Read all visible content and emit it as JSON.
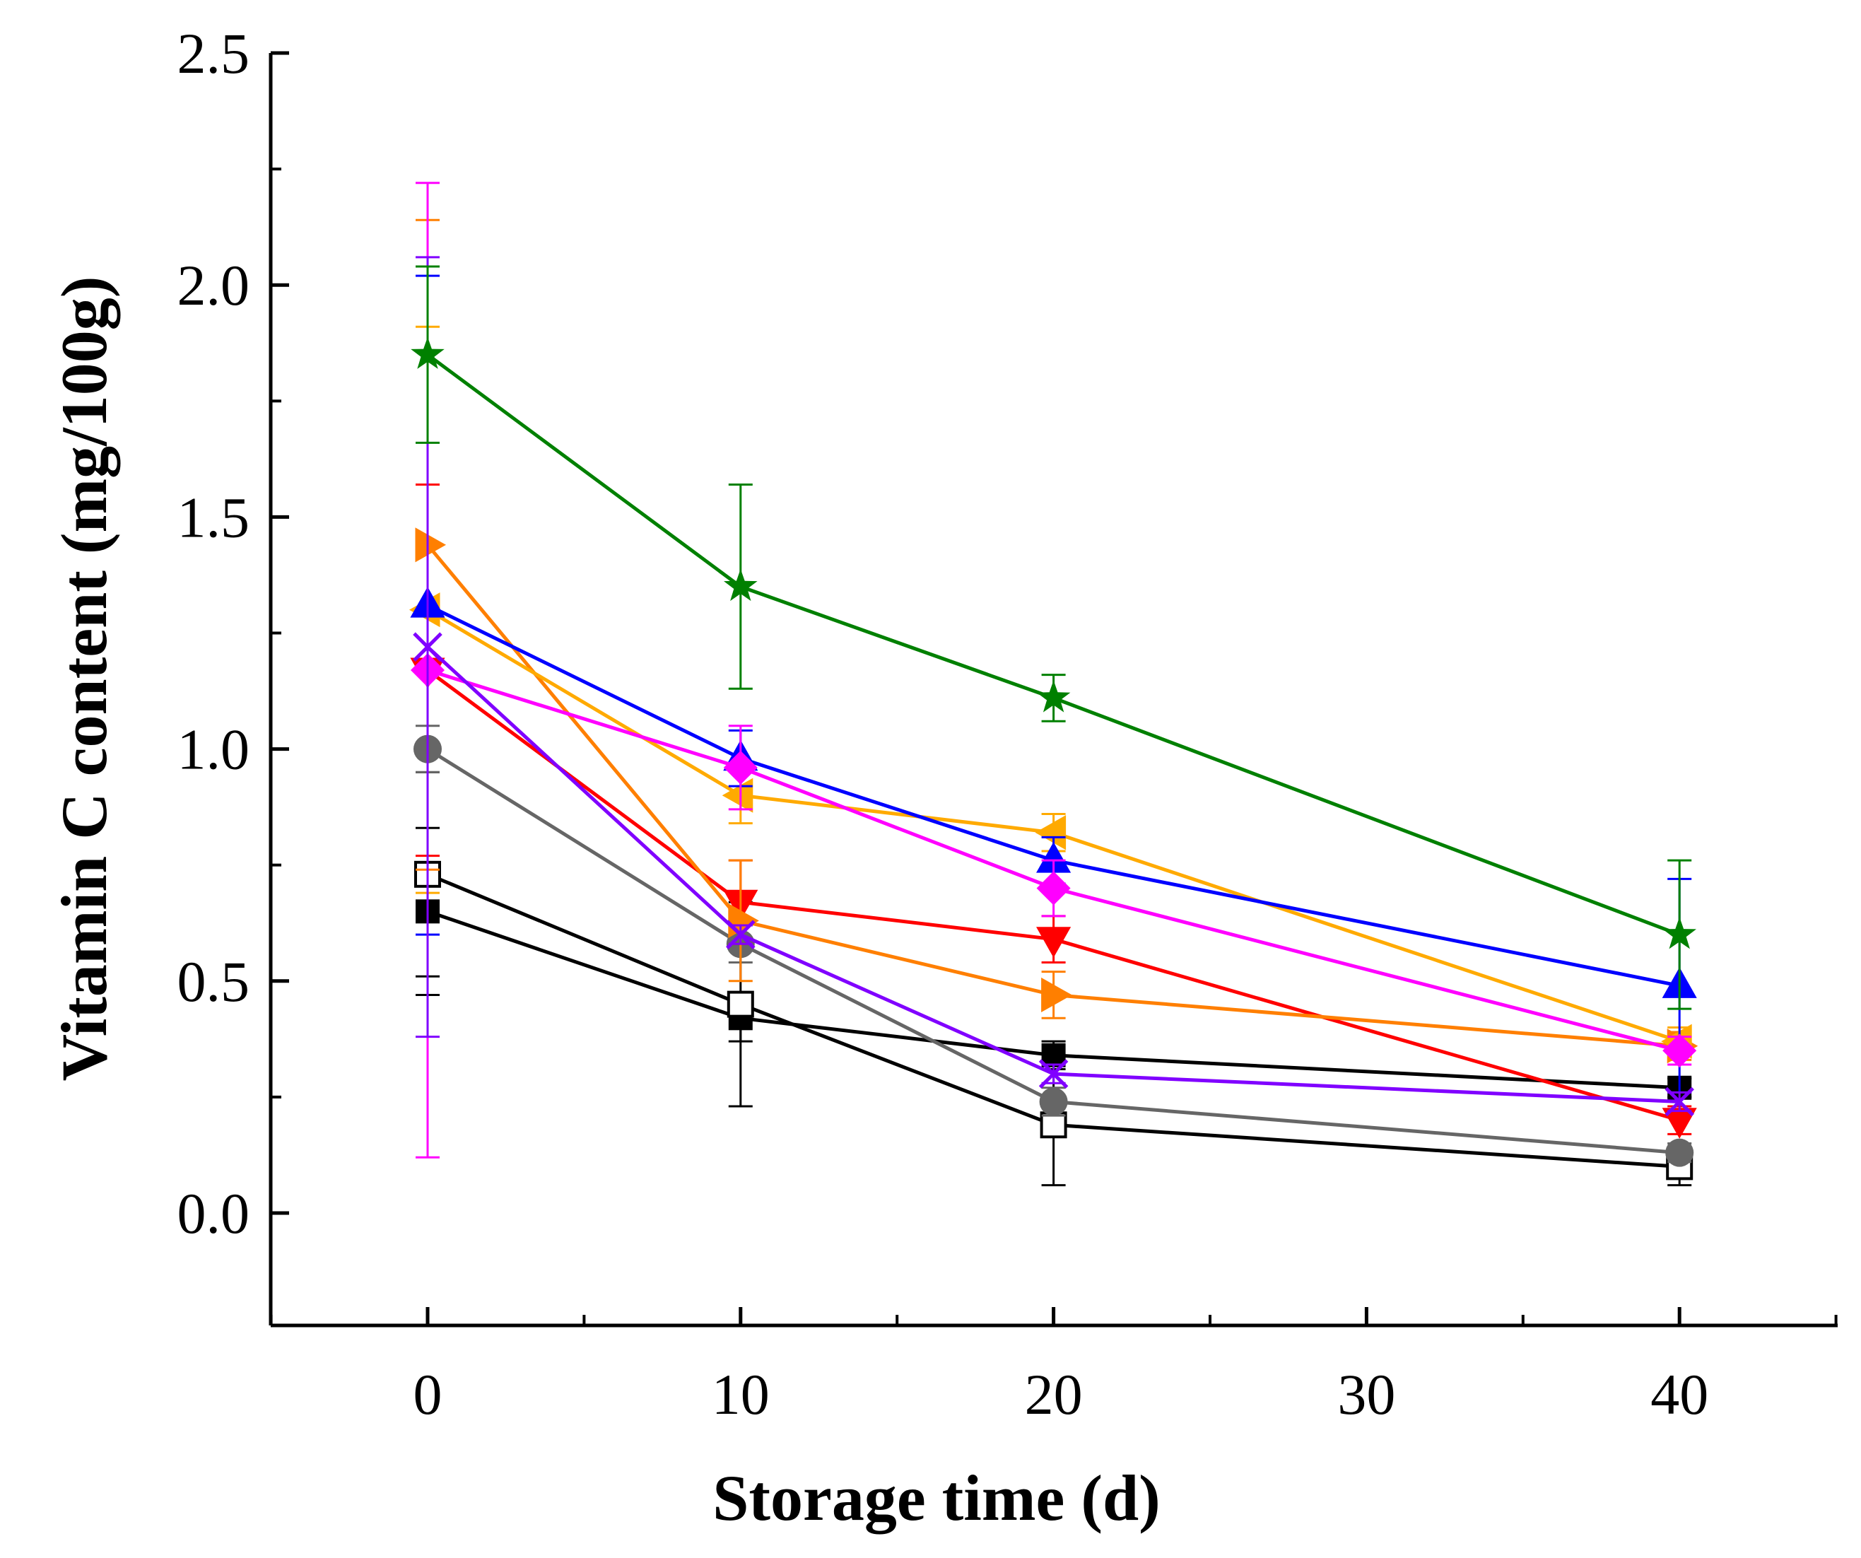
{
  "chart_data": {
    "type": "line",
    "title": "",
    "xlabel": "Storage time (d)",
    "ylabel": "Vitamin C content (mg/100g)",
    "xlim": [
      -5,
      45
    ],
    "ylim": [
      -0.25,
      2.5
    ],
    "xticks": [
      0,
      10,
      20,
      30,
      40
    ],
    "yticks": [
      0.0,
      0.5,
      1.0,
      1.5,
      2.0,
      2.5
    ],
    "xtick_labels": [
      "0",
      "10",
      "20",
      "30",
      "40"
    ],
    "ytick_labels": [
      "0.0",
      "0.5",
      "1.0",
      "1.5",
      "2.0",
      "2.5"
    ],
    "grid": false,
    "legend": "none",
    "x": [
      0,
      10,
      20,
      40
    ],
    "series": [
      {
        "name": "black filled square",
        "marker": "square-filled",
        "color": "#000000",
        "values": [
          0.65,
          0.42,
          0.34,
          0.27
        ],
        "errors": [
          0.18,
          0.05,
          0.03,
          0.02
        ]
      },
      {
        "name": "black open square",
        "marker": "square-open",
        "color": "#000000",
        "values": [
          0.73,
          0.45,
          0.19,
          0.1
        ],
        "errors": [
          0.22,
          0.22,
          0.13,
          0.04
        ]
      },
      {
        "name": "gray circle",
        "marker": "circle",
        "color": "#666666",
        "values": [
          1.0,
          0.58,
          0.24,
          0.13
        ],
        "errors": [
          0.05,
          0.04,
          0.03,
          0.02
        ]
      },
      {
        "name": "red down triangle",
        "marker": "triangle-down",
        "color": "#ff0000",
        "values": [
          1.17,
          0.67,
          0.59,
          0.2
        ],
        "errors": [
          0.4,
          0.09,
          0.05,
          0.03
        ]
      },
      {
        "name": "orange right triangle",
        "marker": "triangle-right",
        "color": "#ff7f00",
        "values": [
          1.44,
          0.63,
          0.47,
          0.36
        ],
        "errors": [
          0.7,
          0.13,
          0.05,
          0.03
        ]
      },
      {
        "name": "yellow left triangle",
        "marker": "triangle-left",
        "color": "#ffaa00",
        "values": [
          1.3,
          0.9,
          0.82,
          0.37
        ],
        "errors": [
          0.61,
          0.06,
          0.04,
          0.03
        ]
      },
      {
        "name": "blue triangle",
        "marker": "triangle-up",
        "color": "#0000ff",
        "values": [
          1.31,
          0.98,
          0.76,
          0.49
        ],
        "errors": [
          0.71,
          0.06,
          0.05,
          0.23
        ]
      },
      {
        "name": "magenta diamond",
        "marker": "diamond",
        "color": "#ff00ff",
        "values": [
          1.17,
          0.96,
          0.7,
          0.35
        ],
        "errors": [
          1.05,
          0.09,
          0.06,
          0.03
        ]
      },
      {
        "name": "purple cross",
        "marker": "x",
        "color": "#8000ff",
        "values": [
          1.22,
          0.6,
          0.3,
          0.24
        ],
        "errors": [
          0.84,
          0.02,
          0.02,
          0.02
        ]
      },
      {
        "name": "green star",
        "marker": "star",
        "color": "#008000",
        "values": [
          1.85,
          1.35,
          1.11,
          0.6
        ],
        "errors": [
          0.19,
          0.22,
          0.05,
          0.16
        ]
      }
    ]
  }
}
